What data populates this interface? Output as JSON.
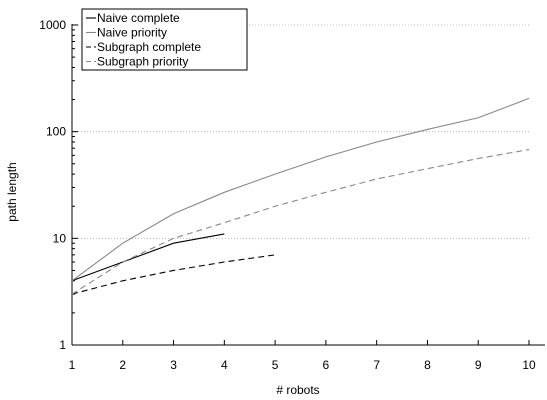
{
  "chart_data": {
    "type": "line",
    "title": "",
    "xlabel": "# robots",
    "ylabel": "path length",
    "x": [
      1,
      2,
      3,
      4,
      5,
      6,
      7,
      8,
      9,
      10
    ],
    "xlim": [
      1,
      10
    ],
    "ylim": [
      1,
      1000
    ],
    "yscale": "log",
    "x_ticks": [
      "1",
      "2",
      "3",
      "4",
      "5",
      "6",
      "7",
      "8",
      "9",
      "10"
    ],
    "y_ticks": [
      {
        "value": 1,
        "label": "1"
      },
      {
        "value": 10,
        "label": "10"
      },
      {
        "value": 100,
        "label": "100"
      },
      {
        "value": 1000,
        "label": "1000"
      }
    ],
    "grid": "horizontal dotted at major y ticks",
    "legend_position": "top-left",
    "series": [
      {
        "name": "Naive complete",
        "color": "#000000",
        "dash": "solid",
        "x": [
          1,
          2,
          3,
          4
        ],
        "values": [
          4,
          6,
          9,
          11
        ]
      },
      {
        "name": "Naive priority",
        "color": "#888888",
        "dash": "solid",
        "x": [
          1,
          2,
          3,
          4,
          5,
          6,
          7,
          8,
          9,
          10
        ],
        "values": [
          4,
          9,
          17,
          27,
          40,
          58,
          80,
          105,
          135,
          205
        ]
      },
      {
        "name": "Subgraph complete",
        "color": "#000000",
        "dash": "dashed",
        "x": [
          1,
          2,
          3,
          4,
          5
        ],
        "values": [
          3,
          4,
          5,
          6,
          7
        ]
      },
      {
        "name": "Subgraph priority",
        "color": "#888888",
        "dash": "dashed",
        "x": [
          1,
          2,
          3,
          4,
          5,
          6,
          7,
          8,
          9,
          10
        ],
        "values": [
          3,
          6,
          10,
          14,
          20,
          27,
          36,
          45,
          56,
          68
        ]
      }
    ]
  }
}
